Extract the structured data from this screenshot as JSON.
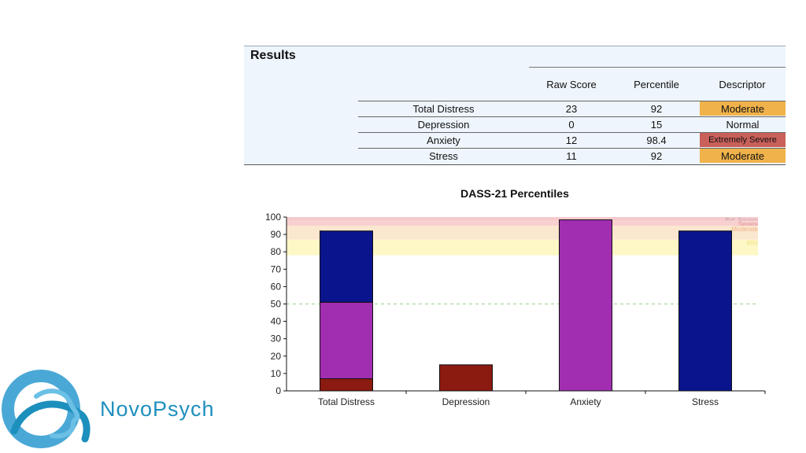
{
  "results": {
    "title": "Results",
    "headers": [
      "Raw Score",
      "Percentile",
      "Descriptor"
    ],
    "rows": [
      {
        "name": "Total Distress",
        "raw": "23",
        "percentile": "92",
        "descriptor": "Moderate",
        "color": "#f0b24a"
      },
      {
        "name": "Depression",
        "raw": "0",
        "percentile": "15",
        "descriptor": "Normal",
        "color": ""
      },
      {
        "name": "Anxiety",
        "raw": "12",
        "percentile": "98.4",
        "descriptor": "Extremely Severe",
        "color": "#c9605a"
      },
      {
        "name": "Stress",
        "raw": "11",
        "percentile": "92",
        "descriptor": "Moderate",
        "color": "#f0b24a"
      }
    ]
  },
  "chart_data": {
    "type": "bar",
    "title": "DASS-21 Percentiles",
    "categories": [
      "Total Distress",
      "Depression",
      "Anxiety",
      "Stress"
    ],
    "stacked": true,
    "series": [
      {
        "values": [
          7,
          15,
          0,
          0
        ],
        "color": "#8b1a10"
      },
      {
        "values": [
          44,
          0,
          98.4,
          0
        ],
        "color": "#a12eb0"
      },
      {
        "values": [
          41,
          0,
          0,
          92
        ],
        "color": "#0a148c"
      }
    ],
    "ylim": [
      0,
      100
    ],
    "yticks": [
      0,
      10,
      20,
      30,
      40,
      50,
      60,
      70,
      80,
      90,
      100
    ],
    "bands": [
      {
        "label": "Ext. Severe",
        "from": 98,
        "to": 100,
        "color": "#f6c9cc",
        "text_color": "#b9a3a6"
      },
      {
        "label": "Severe",
        "from": 95,
        "to": 98,
        "color": "#f8d0cf",
        "text_color": "#e39494"
      },
      {
        "label": "Moderate",
        "from": 87,
        "to": 95,
        "color": "#fbe6cf",
        "text_color": "#f2b58a"
      },
      {
        "label": "Mild",
        "from": 78,
        "to": 87,
        "color": "#fdf8c6",
        "text_color": "#f2e08a"
      }
    ],
    "reference_line": {
      "value": 50,
      "color": "#9ccf8f"
    }
  },
  "logo": {
    "text": "NovoPsych",
    "color": "#1d8fbd"
  }
}
